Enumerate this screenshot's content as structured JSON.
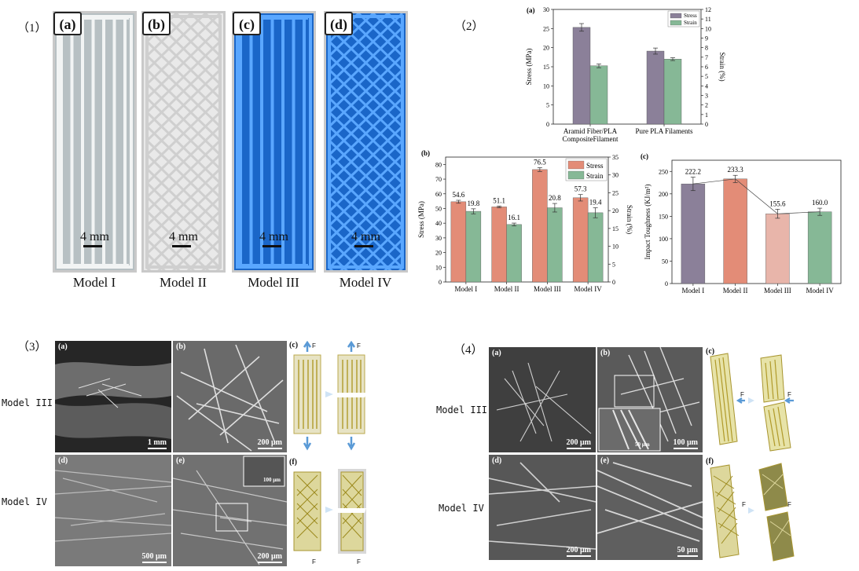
{
  "sections": {
    "s1": "（1）",
    "s2": "（2）",
    "s3": "（3）",
    "s4": "（4）"
  },
  "models": [
    {
      "tag": "(a)",
      "name": "Model I",
      "scale": "4 mm",
      "color": "#b7c0c3",
      "line": "#f2f4f4"
    },
    {
      "tag": "(b)",
      "name": "Model II",
      "scale": "4 mm",
      "color": "#e9e9e9",
      "line": "#cfcfcf"
    },
    {
      "tag": "(c)",
      "name": "Model III",
      "scale": "4 mm",
      "color": "#1a66c8",
      "line": "#5aa7ff"
    },
    {
      "tag": "(d)",
      "name": "Model IV",
      "scale": "4 mm",
      "color": "#1a66c8",
      "line": "#5aa7ff"
    }
  ],
  "chart_data": [
    {
      "type": "bar",
      "panel": "(a)",
      "categories": [
        "Aramid Fiber/PLA CompositeFilament",
        "Pure PLA Filaments"
      ],
      "category_lines": [
        [
          "Aramid Fiber/PLA",
          "CompositeFilament"
        ],
        [
          "Pure PLA Filaments"
        ]
      ],
      "series": [
        {
          "name": "Stress",
          "axis": "left",
          "values": [
            25.3,
            19.1
          ],
          "errors": [
            1.0,
            0.8
          ],
          "color": "#8b8099"
        },
        {
          "name": "Strain",
          "axis": "right",
          "values": [
            6.1,
            6.8
          ],
          "errors": [
            0.2,
            0.15
          ],
          "color": "#86b896"
        }
      ],
      "ylabel": "Stress (MPa)",
      "y2label": "Strain (%)",
      "ylim": [
        0,
        30
      ],
      "y2lim": [
        0,
        12
      ],
      "yticks": [
        "0",
        "5",
        "10",
        "15",
        "20",
        "25",
        "30"
      ],
      "y2ticks": [
        "0",
        "1",
        "2",
        "3",
        "4",
        "5",
        "6",
        "7",
        "8",
        "9",
        "10",
        "11",
        "12"
      ],
      "legend": "top-right"
    },
    {
      "type": "bar",
      "panel": "(b)",
      "categories": [
        "Model I",
        "Model II",
        "Model III",
        "Model IV"
      ],
      "series": [
        {
          "name": "Stress",
          "axis": "left",
          "values": [
            54.6,
            51.1,
            76.5,
            57.3
          ],
          "errors": [
            1.0,
            0.6,
            1.3,
            2.2
          ],
          "color": "#e38c77",
          "labels": [
            "54.6",
            "51.1",
            "76.5",
            "57.3"
          ]
        },
        {
          "name": "Strain",
          "axis": "right",
          "values": [
            19.8,
            16.1,
            20.8,
            19.4
          ],
          "errors": [
            0.7,
            0.4,
            1.2,
            1.4
          ],
          "color": "#86b896",
          "labels": [
            "19.8",
            "16.1",
            "20.8",
            "19.4"
          ]
        }
      ],
      "ylabel": "Stress (MPa)",
      "y2label": "Strain (%)",
      "ylim": [
        0,
        85
      ],
      "y2lim": [
        0,
        35
      ],
      "yticks": [
        "0",
        "10",
        "20",
        "30",
        "40",
        "50",
        "60",
        "70",
        "80"
      ],
      "y2ticks": [
        "0",
        "5",
        "10",
        "15",
        "20",
        "25",
        "30",
        "35"
      ],
      "legend": "top-right"
    },
    {
      "type": "bar",
      "panel": "(c)",
      "categories": [
        "Model I",
        "Model II",
        "Model III",
        "Model IV"
      ],
      "series": [
        {
          "name": "Impact Toughness",
          "values": [
            222.2,
            233.3,
            155.6,
            160.0
          ],
          "errors": [
            15,
            8,
            10,
            8
          ],
          "labels": [
            "222.2",
            "233.3",
            "155.6",
            "160.0"
          ],
          "colors": [
            "#8b8099",
            "#e38c77",
            "#e8b5aa",
            "#86b896"
          ]
        }
      ],
      "ylabel": "Impact Toughness (KJ/m²)",
      "ylim": [
        0,
        275
      ],
      "yticks": [
        "0",
        "50",
        "100",
        "150",
        "200",
        "250"
      ]
    }
  ],
  "sem3": {
    "rows": [
      "Model III",
      "Model IV"
    ],
    "panels": [
      {
        "tag": "(a)",
        "scale": "1 mm"
      },
      {
        "tag": "(b)",
        "scale": "200 μm"
      },
      {
        "tag": "(d)",
        "scale": "500 μm"
      },
      {
        "tag": "(e)",
        "scale": "200 μm",
        "inset": "100 μm"
      }
    ],
    "schem": [
      {
        "tag": "(c)",
        "force": "F"
      },
      {
        "tag": "(f)",
        "force": "F"
      }
    ]
  },
  "sem4": {
    "rows": [
      "Model III",
      "Model IV"
    ],
    "panels": [
      {
        "tag": "(a)",
        "scale": "200 μm"
      },
      {
        "tag": "(b)",
        "scale": "100 μm",
        "inset": "50 μm"
      },
      {
        "tag": "(d)",
        "scale": "200 μm"
      },
      {
        "tag": "(e)",
        "scale": "50 μm"
      }
    ],
    "schem": [
      {
        "tag": "(c)",
        "force": "F"
      },
      {
        "tag": "(f)",
        "force": "F"
      }
    ]
  }
}
